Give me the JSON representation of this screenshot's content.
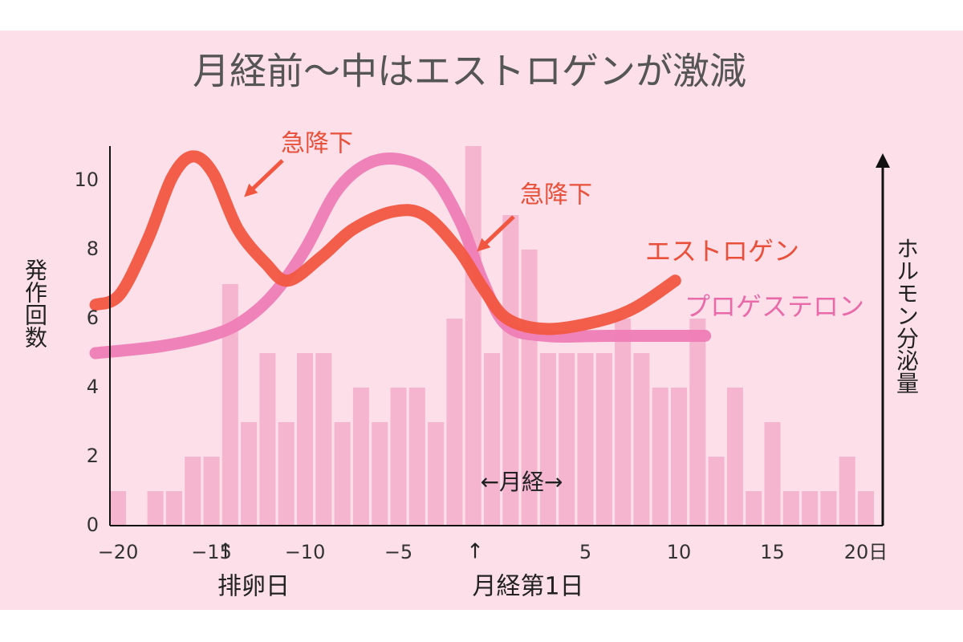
{
  "chart_data": {
    "type": "combo",
    "title": "月経前〜中はエストロゲンが激減",
    "y_label": "発作回数",
    "y2_label": "ホルモン分泌量",
    "xlim": [
      -20.43,
      20.9
    ],
    "ylim": [
      0,
      11
    ],
    "yticks": [
      0,
      2,
      4,
      6,
      8,
      10
    ],
    "xticks": [
      {
        "value": -20,
        "label": "−20"
      },
      {
        "value": -15,
        "label": "−15"
      },
      {
        "value": -10,
        "label": "−10"
      },
      {
        "value": -5,
        "label": "−5"
      },
      5,
      10,
      15,
      {
        "value": 20,
        "label": "20日"
      }
    ],
    "bars": {
      "type": "bar",
      "color": "#f5b5cf",
      "x": [
        -20,
        -19,
        -18,
        -17,
        -16,
        -15,
        -14,
        -13,
        -12,
        -11,
        -10,
        -9,
        -8,
        -7,
        -6,
        -5,
        -4,
        -3,
        -2,
        -1,
        0,
        1,
        2,
        3,
        4,
        5,
        6,
        7,
        8,
        9,
        10,
        11,
        12,
        13,
        14,
        15,
        16,
        17,
        18,
        19,
        20
      ],
      "values": [
        1,
        0,
        1,
        1,
        2,
        2,
        7,
        3,
        5,
        3,
        5,
        5,
        3,
        4,
        3,
        4,
        4,
        3,
        6,
        11,
        5,
        9,
        8,
        5,
        5,
        5,
        5,
        6,
        5,
        4,
        4,
        6,
        2,
        4,
        1,
        3,
        1,
        1,
        1,
        2,
        1
      ]
    },
    "series": [
      {
        "type": "line",
        "name": "プロゲステロン",
        "color": "#ee7db6",
        "x": [
          -21.2,
          -17.7,
          -15.1,
          -13.4,
          -11.7,
          -10.0,
          -8.3,
          -6.6,
          -4.8,
          -3.1,
          -1.6,
          -0.5,
          0.8,
          2.9,
          6.3,
          11.4
        ],
        "values": [
          5.0,
          5.2,
          5.5,
          5.9,
          6.7,
          8.0,
          9.7,
          10.5,
          10.6,
          10.1,
          8.7,
          7.1,
          5.8,
          5.5,
          5.5,
          5.5
        ]
      },
      {
        "type": "line",
        "name": "エストロゲン",
        "color": "#f15640",
        "x": [
          -21.2,
          -19.9,
          -18.4,
          -17.1,
          -16.0,
          -14.9,
          -13.6,
          -12.1,
          -10.9,
          -9.1,
          -7.4,
          -5.3,
          -3.6,
          -1.8,
          -0.5,
          0.8,
          2.9,
          5.5,
          7.6,
          9.8
        ],
        "values": [
          6.4,
          6.7,
          8.3,
          10.1,
          10.7,
          10.2,
          8.6,
          7.6,
          7.1,
          7.8,
          8.6,
          9.1,
          9.0,
          8.0,
          6.9,
          6.0,
          5.7,
          5.9,
          6.3,
          7.1
        ]
      }
    ],
    "annotations": [
      "急降下",
      "急降下",
      "←月経→",
      "↑",
      "↑",
      "排卵日",
      "月経第1日"
    ]
  }
}
